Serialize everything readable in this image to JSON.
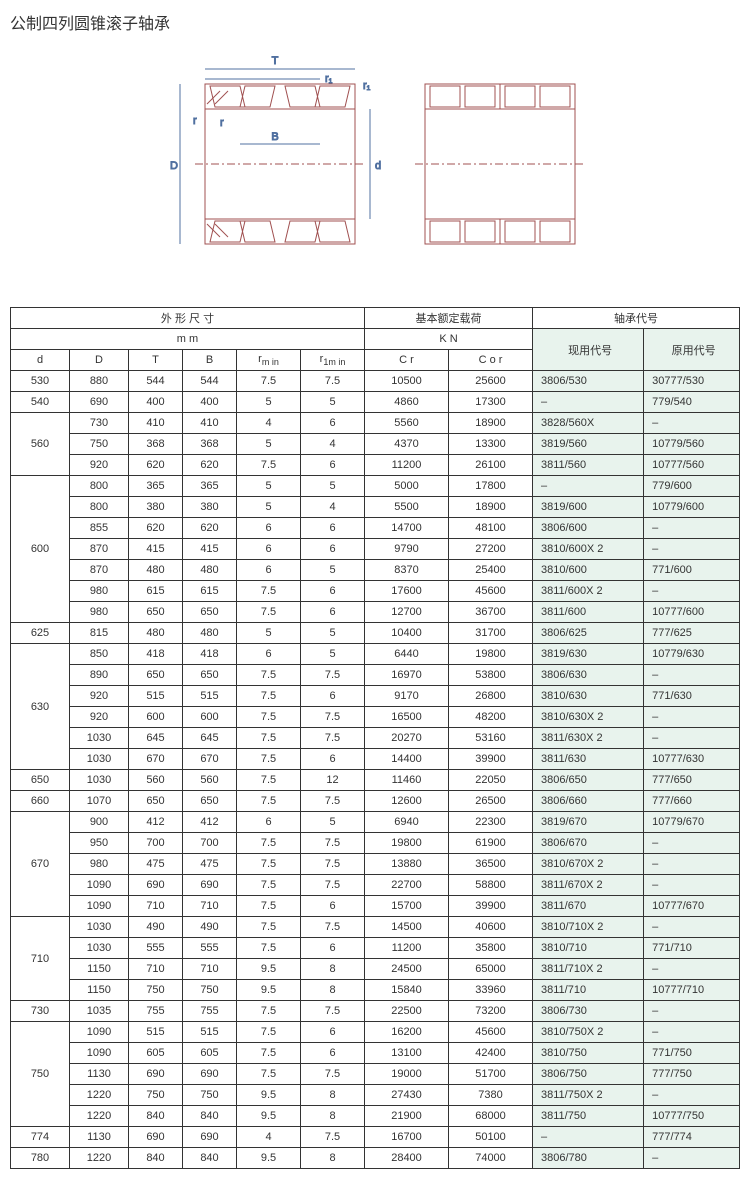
{
  "title": "公制四列圆锥滚子轴承",
  "diagram": {
    "labels": {
      "T": "T",
      "r1_top": "r₁",
      "r1_right": "r₁",
      "r_left": "r",
      "r_inner": "r",
      "B": "B",
      "D": "D",
      "d": "d"
    },
    "stroke_color": "#a05050",
    "dim_color": "#5070a0",
    "hatch_stroke": "#a05050"
  },
  "table": {
    "header_group_dims": "外 形 尺 寸",
    "header_group_load": "基本额定载荷",
    "header_group_code": "轴承代号",
    "header_unit_mm": "m m",
    "header_unit_kn": "K N",
    "header_code_current": "现用代号",
    "header_code_original": "原用代号",
    "col_d": "d",
    "col_D": "D",
    "col_T": "T",
    "col_B": "B",
    "col_rmin": "r",
    "col_rmin_sub": "m in",
    "col_r1min": "r",
    "col_r1min_sub": "1m in",
    "col_Cr": "C r",
    "col_Cor": "C o r",
    "groups": [
      {
        "d": "530",
        "rows": [
          {
            "D": "880",
            "T": "544",
            "B": "544",
            "rmin": "7.5",
            "r1min": "7.5",
            "Cr": "10500",
            "Cor": "25600",
            "cur": "3806/530",
            "orig": "30777/530"
          }
        ]
      },
      {
        "d": "540",
        "rows": [
          {
            "D": "690",
            "T": "400",
            "B": "400",
            "rmin": "5",
            "r1min": "5",
            "Cr": "4860",
            "Cor": "17300",
            "cur": "–",
            "orig": "779/540"
          }
        ]
      },
      {
        "d": "560",
        "rows": [
          {
            "D": "730",
            "T": "410",
            "B": "410",
            "rmin": "4",
            "r1min": "6",
            "Cr": "5560",
            "Cor": "18900",
            "cur": "3828/560X",
            "orig": "–"
          },
          {
            "D": "750",
            "T": "368",
            "B": "368",
            "rmin": "5",
            "r1min": "4",
            "Cr": "4370",
            "Cor": "13300",
            "cur": "3819/560",
            "orig": "10779/560"
          },
          {
            "D": "920",
            "T": "620",
            "B": "620",
            "rmin": "7.5",
            "r1min": "6",
            "Cr": "11200",
            "Cor": "26100",
            "cur": "3811/560",
            "orig": "10777/560"
          }
        ]
      },
      {
        "d": "600",
        "rows": [
          {
            "D": "800",
            "T": "365",
            "B": "365",
            "rmin": "5",
            "r1min": "5",
            "Cr": "5000",
            "Cor": "17800",
            "cur": "–",
            "orig": "779/600"
          },
          {
            "D": "800",
            "T": "380",
            "B": "380",
            "rmin": "5",
            "r1min": "4",
            "Cr": "5500",
            "Cor": "18900",
            "cur": "3819/600",
            "orig": "10779/600"
          },
          {
            "D": "855",
            "T": "620",
            "B": "620",
            "rmin": "6",
            "r1min": "6",
            "Cr": "14700",
            "Cor": "48100",
            "cur": "3806/600",
            "orig": "–"
          },
          {
            "D": "870",
            "T": "415",
            "B": "415",
            "rmin": "6",
            "r1min": "6",
            "Cr": "9790",
            "Cor": "27200",
            "cur": "3810/600X 2",
            "orig": "–"
          },
          {
            "D": "870",
            "T": "480",
            "B": "480",
            "rmin": "6",
            "r1min": "5",
            "Cr": "8370",
            "Cor": "25400",
            "cur": "3810/600",
            "orig": "771/600"
          },
          {
            "D": "980",
            "T": "615",
            "B": "615",
            "rmin": "7.5",
            "r1min": "6",
            "Cr": "17600",
            "Cor": "45600",
            "cur": "3811/600X 2",
            "orig": "–"
          },
          {
            "D": "980",
            "T": "650",
            "B": "650",
            "rmin": "7.5",
            "r1min": "6",
            "Cr": "12700",
            "Cor": "36700",
            "cur": "3811/600",
            "orig": "10777/600"
          }
        ]
      },
      {
        "d": "625",
        "rows": [
          {
            "D": "815",
            "T": "480",
            "B": "480",
            "rmin": "5",
            "r1min": "5",
            "Cr": "10400",
            "Cor": "31700",
            "cur": "3806/625",
            "orig": "777/625"
          }
        ]
      },
      {
        "d": "630",
        "rows": [
          {
            "D": "850",
            "T": "418",
            "B": "418",
            "rmin": "6",
            "r1min": "5",
            "Cr": "6440",
            "Cor": "19800",
            "cur": "3819/630",
            "orig": "10779/630"
          },
          {
            "D": "890",
            "T": "650",
            "B": "650",
            "rmin": "7.5",
            "r1min": "7.5",
            "Cr": "16970",
            "Cor": "53800",
            "cur": "3806/630",
            "orig": "–"
          },
          {
            "D": "920",
            "T": "515",
            "B": "515",
            "rmin": "7.5",
            "r1min": "6",
            "Cr": "9170",
            "Cor": "26800",
            "cur": "3810/630",
            "orig": "771/630"
          },
          {
            "D": "920",
            "T": "600",
            "B": "600",
            "rmin": "7.5",
            "r1min": "7.5",
            "Cr": "16500",
            "Cor": "48200",
            "cur": "3810/630X 2",
            "orig": "–"
          },
          {
            "D": "1030",
            "T": "645",
            "B": "645",
            "rmin": "7.5",
            "r1min": "7.5",
            "Cr": "20270",
            "Cor": "53160",
            "cur": "3811/630X 2",
            "orig": "–"
          },
          {
            "D": "1030",
            "T": "670",
            "B": "670",
            "rmin": "7.5",
            "r1min": "6",
            "Cr": "14400",
            "Cor": "39900",
            "cur": "3811/630",
            "orig": "10777/630"
          }
        ]
      },
      {
        "d": "650",
        "rows": [
          {
            "D": "1030",
            "T": "560",
            "B": "560",
            "rmin": "7.5",
            "r1min": "12",
            "Cr": "11460",
            "Cor": "22050",
            "cur": "3806/650",
            "orig": "777/650"
          }
        ]
      },
      {
        "d": "660",
        "rows": [
          {
            "D": "1070",
            "T": "650",
            "B": "650",
            "rmin": "7.5",
            "r1min": "7.5",
            "Cr": "12600",
            "Cor": "26500",
            "cur": "3806/660",
            "orig": "777/660"
          }
        ]
      },
      {
        "d": "670",
        "rows": [
          {
            "D": "900",
            "T": "412",
            "B": "412",
            "rmin": "6",
            "r1min": "5",
            "Cr": "6940",
            "Cor": "22300",
            "cur": "3819/670",
            "orig": "10779/670"
          },
          {
            "D": "950",
            "T": "700",
            "B": "700",
            "rmin": "7.5",
            "r1min": "7.5",
            "Cr": "19800",
            "Cor": "61900",
            "cur": "3806/670",
            "orig": "–"
          },
          {
            "D": "980",
            "T": "475",
            "B": "475",
            "rmin": "7.5",
            "r1min": "7.5",
            "Cr": "13880",
            "Cor": "36500",
            "cur": "3810/670X 2",
            "orig": "–"
          },
          {
            "D": "1090",
            "T": "690",
            "B": "690",
            "rmin": "7.5",
            "r1min": "7.5",
            "Cr": "22700",
            "Cor": "58800",
            "cur": "3811/670X 2",
            "orig": "–"
          },
          {
            "D": "1090",
            "T": "710",
            "B": "710",
            "rmin": "7.5",
            "r1min": "6",
            "Cr": "15700",
            "Cor": "39900",
            "cur": "3811/670",
            "orig": "10777/670"
          }
        ]
      },
      {
        "d": "710",
        "rows": [
          {
            "D": "1030",
            "T": "490",
            "B": "490",
            "rmin": "7.5",
            "r1min": "7.5",
            "Cr": "14500",
            "Cor": "40600",
            "cur": "3810/710X 2",
            "orig": "–"
          },
          {
            "D": "1030",
            "T": "555",
            "B": "555",
            "rmin": "7.5",
            "r1min": "6",
            "Cr": "11200",
            "Cor": "35800",
            "cur": "3810/710",
            "orig": "771/710"
          },
          {
            "D": "1150",
            "T": "710",
            "B": "710",
            "rmin": "9.5",
            "r1min": "8",
            "Cr": "24500",
            "Cor": "65000",
            "cur": "3811/710X 2",
            "orig": "–"
          },
          {
            "D": "1150",
            "T": "750",
            "B": "750",
            "rmin": "9.5",
            "r1min": "8",
            "Cr": "15840",
            "Cor": "33960",
            "cur": "3811/710",
            "orig": "10777/710"
          }
        ]
      },
      {
        "d": "730",
        "rows": [
          {
            "D": "1035",
            "T": "755",
            "B": "755",
            "rmin": "7.5",
            "r1min": "7.5",
            "Cr": "22500",
            "Cor": "73200",
            "cur": "3806/730",
            "orig": "–"
          }
        ]
      },
      {
        "d": "750",
        "rows": [
          {
            "D": "1090",
            "T": "515",
            "B": "515",
            "rmin": "7.5",
            "r1min": "6",
            "Cr": "16200",
            "Cor": "45600",
            "cur": "3810/750X 2",
            "orig": "–"
          },
          {
            "D": "1090",
            "T": "605",
            "B": "605",
            "rmin": "7.5",
            "r1min": "6",
            "Cr": "13100",
            "Cor": "42400",
            "cur": "3810/750",
            "orig": "771/750"
          },
          {
            "D": "1130",
            "T": "690",
            "B": "690",
            "rmin": "7.5",
            "r1min": "7.5",
            "Cr": "19000",
            "Cor": "51700",
            "cur": "3806/750",
            "orig": "777/750"
          },
          {
            "D": "1220",
            "T": "750",
            "B": "750",
            "rmin": "9.5",
            "r1min": "8",
            "Cr": "27430",
            "Cor": "7380",
            "cur": "3811/750X 2",
            "orig": "–"
          },
          {
            "D": "1220",
            "T": "840",
            "B": "840",
            "rmin": "9.5",
            "r1min": "8",
            "Cr": "21900",
            "Cor": "68000",
            "cur": "3811/750",
            "orig": "10777/750"
          }
        ]
      },
      {
        "d": "774",
        "rows": [
          {
            "D": "1130",
            "T": "690",
            "B": "690",
            "rmin": "4",
            "r1min": "7.5",
            "Cr": "16700",
            "Cor": "50100",
            "cur": "–",
            "orig": "777/774"
          }
        ]
      },
      {
        "d": "780",
        "rows": [
          {
            "D": "1220",
            "T": "840",
            "B": "840",
            "rmin": "9.5",
            "r1min": "8",
            "Cr": "28400",
            "Cor": "74000",
            "cur": "3806/780",
            "orig": "–"
          }
        ]
      }
    ]
  }
}
